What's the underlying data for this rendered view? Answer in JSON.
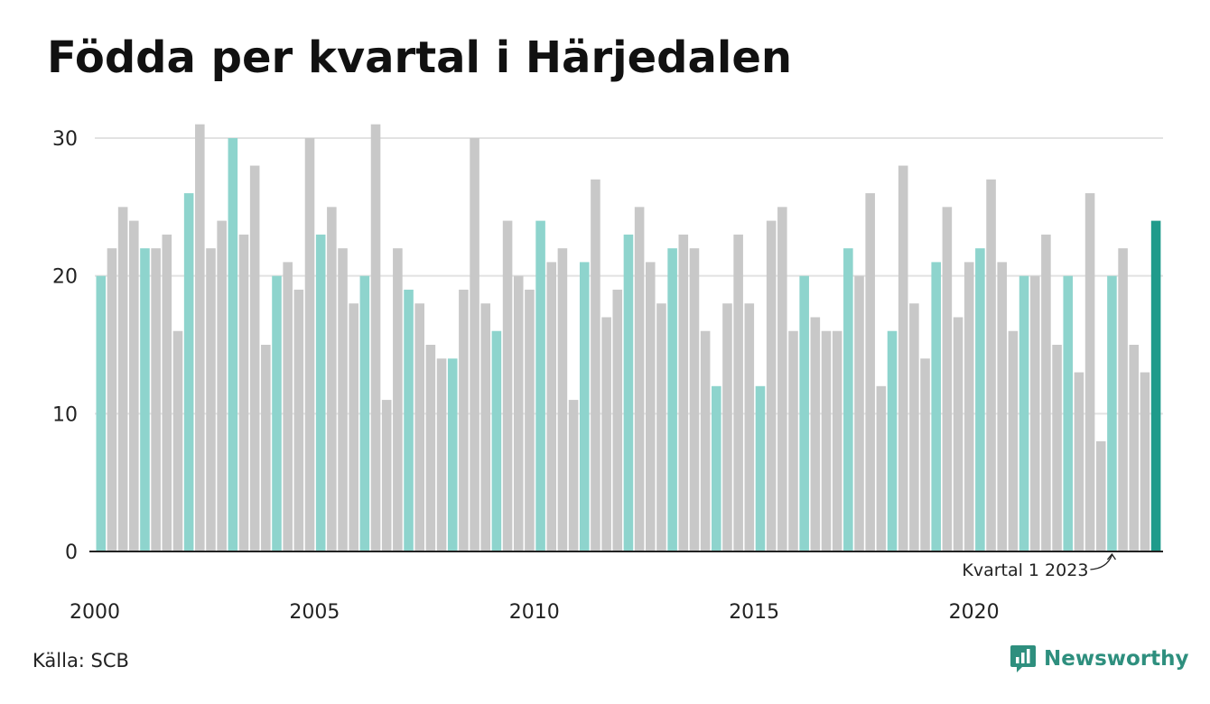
{
  "header": {
    "title": "Födda per kvartal i Härjedalen"
  },
  "footer": {
    "source": "Källa: SCB",
    "brand": "Newsworthy"
  },
  "colors": {
    "q1": "#8ed4cd",
    "other": "#c8c8c8",
    "latest": "#1f9b8b",
    "grid": "#e2e2e2",
    "axis": "#222222"
  },
  "chart_data": {
    "type": "bar",
    "title": "Födda per kvartal i Härjedalen",
    "xlabel": "",
    "ylabel": "",
    "ylim": [
      0,
      31
    ],
    "yticks": [
      0,
      10,
      20,
      30
    ],
    "xticks": [
      "2000",
      "2005",
      "2010",
      "2015",
      "2020"
    ],
    "grid": true,
    "start": "2000 Q1",
    "frequency": "quarterly",
    "highlight_quarter": 1,
    "values": [
      20,
      22,
      25,
      24,
      22,
      22,
      23,
      16,
      26,
      31,
      22,
      24,
      30,
      23,
      28,
      15,
      20,
      21,
      19,
      30,
      23,
      25,
      22,
      18,
      20,
      31,
      11,
      22,
      19,
      18,
      15,
      14,
      14,
      19,
      30,
      18,
      16,
      24,
      20,
      19,
      24,
      21,
      22,
      11,
      21,
      27,
      17,
      19,
      23,
      25,
      21,
      18,
      22,
      23,
      22,
      16,
      12,
      18,
      23,
      18,
      12,
      24,
      25,
      16,
      20,
      17,
      16,
      16,
      22,
      20,
      26,
      12,
      16,
      28,
      18,
      14,
      21,
      25,
      17,
      21,
      22,
      27,
      21,
      16,
      20,
      20,
      23,
      15,
      20,
      13,
      26,
      8,
      20,
      22,
      15,
      13,
      24
    ],
    "annotation": {
      "text": "Kvartal 1 2023",
      "target": "2023 Q1"
    }
  }
}
